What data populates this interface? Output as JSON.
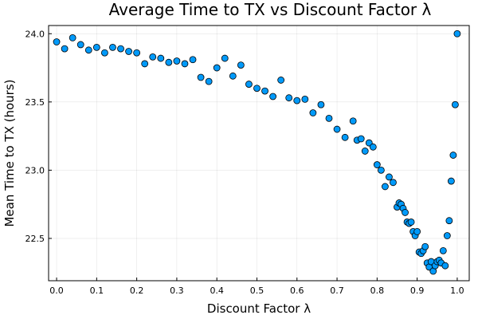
{
  "chart_data": {
    "type": "scatter",
    "title": "Average Time to TX vs Discount Factor λ",
    "xlabel": "Discount Factor λ",
    "ylabel": "Mean Time to TX (hours)",
    "xlim": [
      -0.02,
      1.03
    ],
    "ylim": [
      22.19,
      24.06
    ],
    "xticks": [
      0.0,
      0.1,
      0.2,
      0.3,
      0.4,
      0.5,
      0.6,
      0.7,
      0.8,
      0.9,
      1.0
    ],
    "xtick_labels": [
      "0.0",
      "0.1",
      "0.2",
      "0.3",
      "0.4",
      "0.5",
      "0.6",
      "0.7",
      "0.8",
      "0.9",
      "1.0"
    ],
    "yticks": [
      22.5,
      23.0,
      23.5,
      24.0
    ],
    "ytick_labels": [
      "22.5",
      "23.0",
      "23.5",
      "24.0"
    ],
    "grid": true,
    "legend": false,
    "marker_color": "#009AFA",
    "x": [
      0.0,
      0.02,
      0.04,
      0.06,
      0.08,
      0.1,
      0.12,
      0.14,
      0.16,
      0.18,
      0.2,
      0.22,
      0.24,
      0.26,
      0.28,
      0.3,
      0.32,
      0.34,
      0.36,
      0.38,
      0.4,
      0.42,
      0.44,
      0.46,
      0.48,
      0.5,
      0.52,
      0.54,
      0.56,
      0.58,
      0.6,
      0.62,
      0.64,
      0.66,
      0.68,
      0.7,
      0.72,
      0.74,
      0.75,
      0.76,
      0.77,
      0.78,
      0.79,
      0.8,
      0.81,
      0.82,
      0.83,
      0.84,
      0.85,
      0.855,
      0.86,
      0.865,
      0.87,
      0.875,
      0.88,
      0.885,
      0.89,
      0.895,
      0.9,
      0.905,
      0.91,
      0.915,
      0.92,
      0.925,
      0.93,
      0.935,
      0.94,
      0.945,
      0.95,
      0.955,
      0.96,
      0.965,
      0.97,
      0.975,
      0.98,
      0.985,
      0.99,
      0.995,
      1.0
    ],
    "y": [
      23.94,
      23.89,
      23.97,
      23.92,
      23.88,
      23.9,
      23.86,
      23.9,
      23.89,
      23.87,
      23.86,
      23.78,
      23.83,
      23.82,
      23.79,
      23.8,
      23.78,
      23.81,
      23.68,
      23.65,
      23.75,
      23.82,
      23.69,
      23.77,
      23.63,
      23.6,
      23.58,
      23.54,
      23.66,
      23.53,
      23.51,
      23.52,
      23.42,
      23.48,
      23.38,
      23.3,
      23.24,
      23.36,
      23.22,
      23.23,
      23.14,
      23.2,
      23.17,
      23.04,
      23.0,
      22.88,
      22.95,
      22.91,
      22.73,
      22.76,
      22.75,
      22.72,
      22.69,
      22.62,
      22.61,
      22.62,
      22.55,
      22.52,
      22.55,
      22.4,
      22.39,
      22.41,
      22.44,
      22.32,
      22.29,
      22.33,
      22.26,
      22.3,
      22.33,
      22.34,
      22.32,
      22.41,
      22.3,
      22.52,
      22.63,
      22.92,
      23.11,
      23.48,
      24.0
    ]
  }
}
